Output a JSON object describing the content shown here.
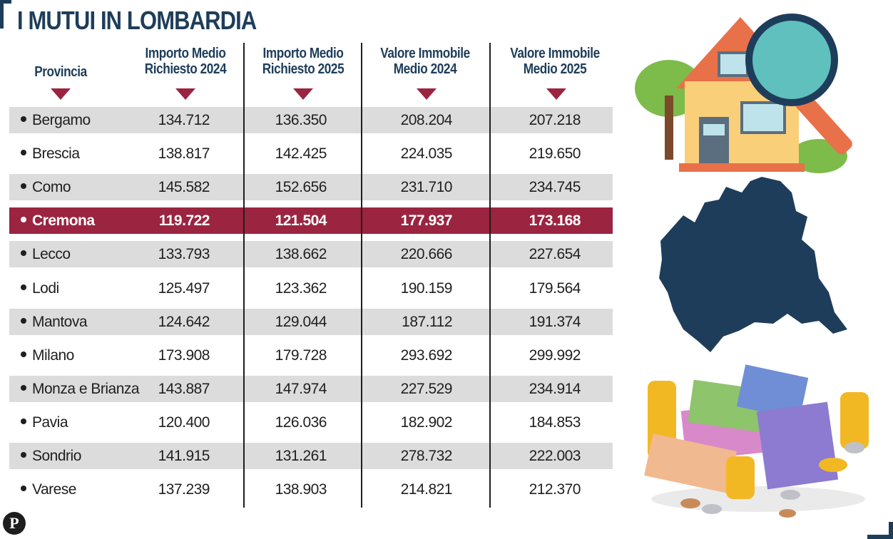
{
  "title": "I MUTUI IN LOMBARDIA",
  "headers": {
    "provincia": "Provincia",
    "col1_line1": "Importo Medio",
    "col1_line2": "Richiesto 2024",
    "col2_line1": "Importo Medio",
    "col2_line2": "Richiesto 2025",
    "col3_line1": "Valore Immobile",
    "col3_line2": "Medio 2024",
    "col4_line1": "Valore Immobile",
    "col4_line2": "Medio 2025"
  },
  "rows": [
    {
      "provincia": "Bergamo",
      "imp2024": "134.712",
      "imp2025": "136.350",
      "val2024": "208.204",
      "val2025": "207.218"
    },
    {
      "provincia": "Brescia",
      "imp2024": "138.817",
      "imp2025": "142.425",
      "val2024": "224.035",
      "val2025": "219.650"
    },
    {
      "provincia": "Como",
      "imp2024": "145.582",
      "imp2025": "152.656",
      "val2024": "231.710",
      "val2025": "234.745"
    },
    {
      "provincia": "Cremona",
      "imp2024": "119.722",
      "imp2025": "121.504",
      "val2024": "177.937",
      "val2025": "173.168"
    },
    {
      "provincia": "Lecco",
      "imp2024": "133.793",
      "imp2025": "138.662",
      "val2024": "220.666",
      "val2025": "227.654"
    },
    {
      "provincia": "Lodi",
      "imp2024": "125.497",
      "imp2025": "123.362",
      "val2024": "190.159",
      "val2025": "179.564"
    },
    {
      "provincia": "Mantova",
      "imp2024": "124.642",
      "imp2025": "129.044",
      "val2024": "187.112",
      "val2025": "191.374"
    },
    {
      "provincia": "Milano",
      "imp2024": "173.908",
      "imp2025": "179.728",
      "val2024": "293.692",
      "val2025": "299.992"
    },
    {
      "provincia": "Monza e Brianza",
      "imp2024": "143.887",
      "imp2025": "147.974",
      "val2024": "227.529",
      "val2025": "234.914"
    },
    {
      "provincia": "Pavia",
      "imp2024": "120.400",
      "imp2025": "126.036",
      "val2024": "182.902",
      "val2025": "184.853"
    },
    {
      "provincia": "Sondrio",
      "imp2024": "141.915",
      "imp2025": "131.261",
      "val2024": "278.732",
      "val2025": "222.003"
    },
    {
      "provincia": "Varese",
      "imp2024": "137.239",
      "imp2025": "138.903",
      "val2024": "214.821",
      "val2025": "212.370"
    }
  ],
  "highlight_row": "Cremona",
  "colors": {
    "accent": "#9b2440",
    "navy": "#1e3d5a",
    "shade": "#dcdcdc"
  },
  "icons": [
    "house-magnifier-icon",
    "lombardy-map-icon",
    "money-pile-icon"
  ],
  "logo": "P"
}
